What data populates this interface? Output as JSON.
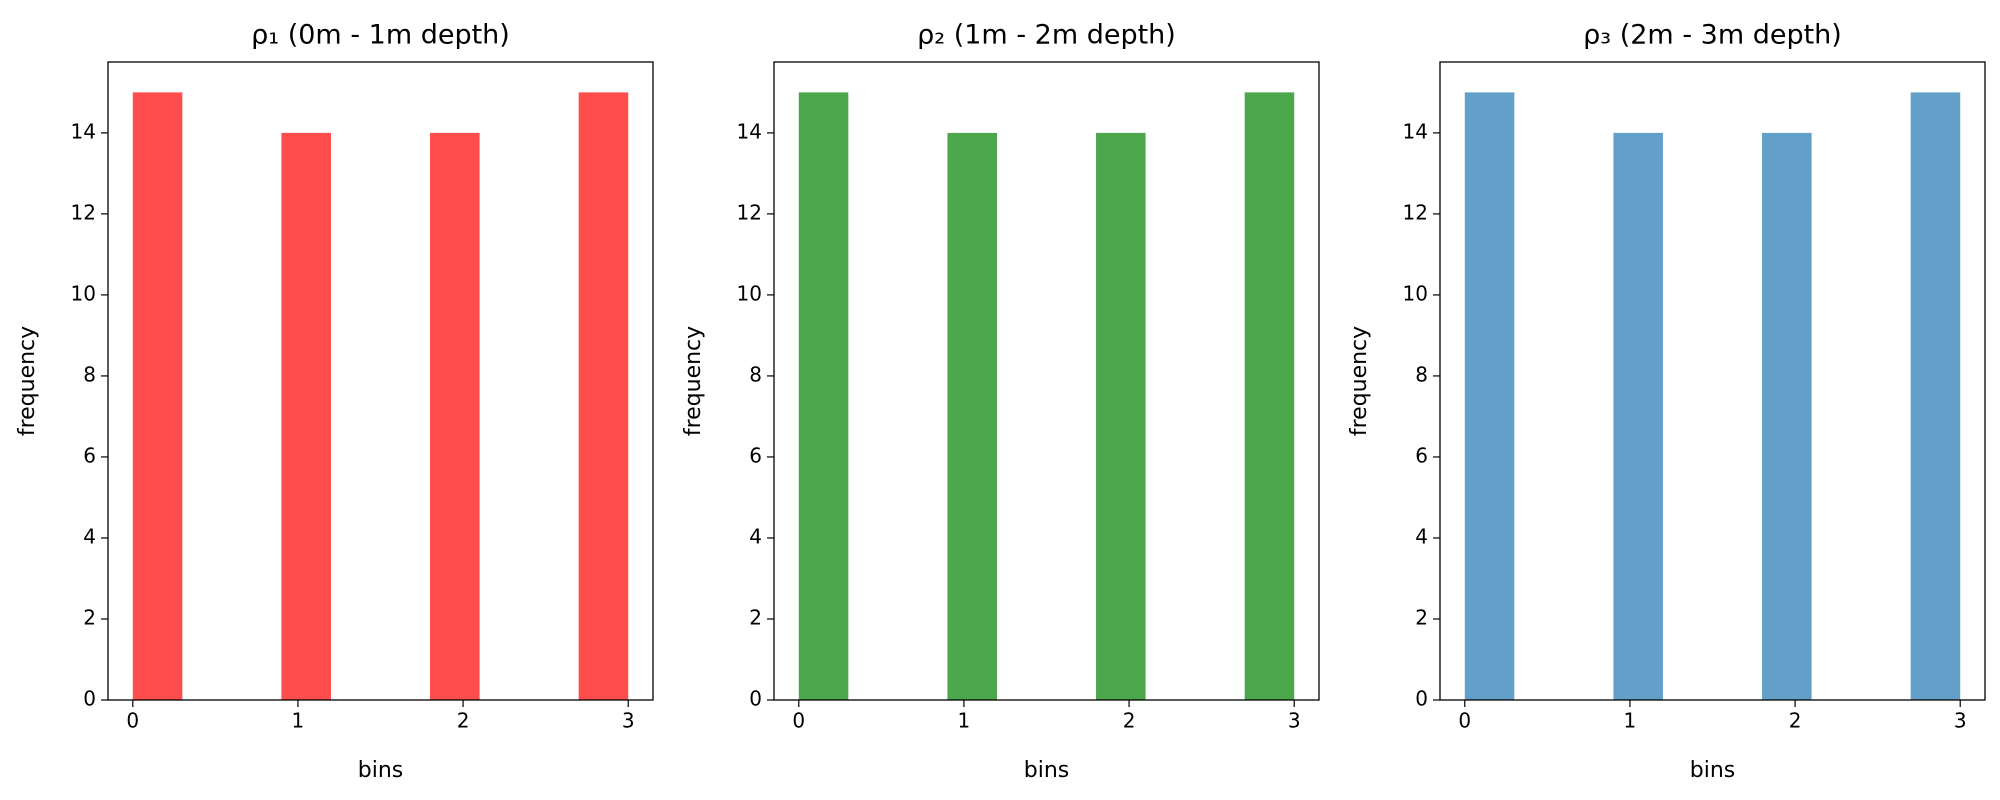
{
  "chart_data": [
    {
      "type": "histogram",
      "title": "ρ₁ (0m - 1m depth)",
      "x_label": "bins",
      "y_label": "frequency",
      "color": "#ff4c4c",
      "bins": [
        0,
        0.3,
        0.6,
        0.9,
        1.2,
        1.5,
        1.8,
        2.1,
        2.4,
        2.7,
        3.0
      ],
      "values": [
        15,
        0,
        0,
        14,
        0,
        0,
        14,
        0,
        0,
        15
      ],
      "xlim": [
        -0.15,
        3.15
      ],
      "ylim": [
        0,
        15.75
      ],
      "xticks": [
        0,
        1,
        2,
        3
      ],
      "yticks": [
        0,
        2,
        4,
        6,
        8,
        10,
        12,
        14
      ]
    },
    {
      "type": "histogram",
      "title": "ρ₂ (1m - 2m depth)",
      "x_label": "bins",
      "y_label": "frequency",
      "color": "#4ca64c",
      "bins": [
        0,
        0.3,
        0.6,
        0.9,
        1.2,
        1.5,
        1.8,
        2.1,
        2.4,
        2.7,
        3.0
      ],
      "values": [
        15,
        0,
        0,
        14,
        0,
        0,
        14,
        0,
        0,
        15
      ],
      "xlim": [
        -0.15,
        3.15
      ],
      "ylim": [
        0,
        15.75
      ],
      "xticks": [
        0,
        1,
        2,
        3
      ],
      "yticks": [
        0,
        2,
        4,
        6,
        8,
        10,
        12,
        14
      ]
    },
    {
      "type": "histogram",
      "title": "ρ₃ (2m - 3m depth)",
      "x_label": "bins",
      "y_label": "frequency",
      "color": "#62a0ca",
      "bins": [
        0,
        0.3,
        0.6,
        0.9,
        1.2,
        1.5,
        1.8,
        2.1,
        2.4,
        2.7,
        3.0
      ],
      "values": [
        15,
        0,
        0,
        14,
        0,
        0,
        14,
        0,
        0,
        15
      ],
      "xlim": [
        -0.15,
        3.15
      ],
      "ylim": [
        0,
        15.75
      ],
      "xticks": [
        0,
        1,
        2,
        3
      ],
      "yticks": [
        0,
        2,
        4,
        6,
        8,
        10,
        12,
        14
      ]
    }
  ]
}
